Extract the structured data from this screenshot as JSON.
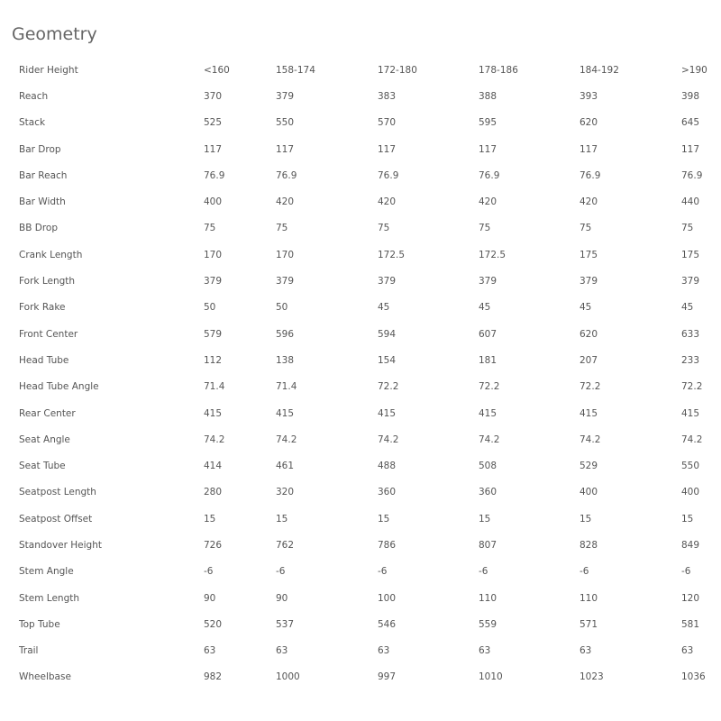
{
  "title": "Geometry",
  "rows": [
    [
      "Rider Height",
      "<160",
      "158-174",
      "172-180",
      "178-186",
      "184-192",
      ">190"
    ],
    [
      "Reach",
      "370",
      "379",
      "383",
      "388",
      "393",
      "398"
    ],
    [
      "Stack",
      "525",
      "550",
      "570",
      "595",
      "620",
      "645"
    ],
    [
      "Bar Drop",
      "117",
      "117",
      "117",
      "117",
      "117",
      "117"
    ],
    [
      "Bar Reach",
      "76.9",
      "76.9",
      "76.9",
      "76.9",
      "76.9",
      "76.9"
    ],
    [
      "Bar Width",
      "400",
      "420",
      "420",
      "420",
      "420",
      "440"
    ],
    [
      "BB Drop",
      "75",
      "75",
      "75",
      "75",
      "75",
      "75"
    ],
    [
      "Crank Length",
      "170",
      "170",
      "172.5",
      "172.5",
      "175",
      "175"
    ],
    [
      "Fork Length",
      "379",
      "379",
      "379",
      "379",
      "379",
      "379"
    ],
    [
      "Fork Rake",
      "50",
      "50",
      "45",
      "45",
      "45",
      "45"
    ],
    [
      "Front Center",
      "579",
      "596",
      "594",
      "607",
      "620",
      "633"
    ],
    [
      "Head Tube",
      "112",
      "138",
      "154",
      "181",
      "207",
      "233"
    ],
    [
      "Head Tube Angle",
      "71.4",
      "71.4",
      "72.2",
      "72.2",
      "72.2",
      "72.2"
    ],
    [
      "Rear Center",
      "415",
      "415",
      "415",
      "415",
      "415",
      "415"
    ],
    [
      "Seat Angle",
      "74.2",
      "74.2",
      "74.2",
      "74.2",
      "74.2",
      "74.2"
    ],
    [
      "Seat Tube",
      "414",
      "461",
      "488",
      "508",
      "529",
      "550"
    ],
    [
      "Seatpost Length",
      "280",
      "320",
      "360",
      "360",
      "400",
      "400"
    ],
    [
      "Seatpost Offset",
      "15",
      "15",
      "15",
      "15",
      "15",
      "15"
    ],
    [
      "Standover Height",
      "726",
      "762",
      "786",
      "807",
      "828",
      "849"
    ],
    [
      "Stem Angle",
      "-6",
      "-6",
      "-6",
      "-6",
      "-6",
      "-6"
    ],
    [
      "Stem Length",
      "90",
      "90",
      "100",
      "110",
      "110",
      "120"
    ],
    [
      "Top Tube",
      "520",
      "537",
      "546",
      "559",
      "571",
      "581"
    ],
    [
      "Trail",
      "63",
      "63",
      "63",
      "63",
      "63",
      "63"
    ],
    [
      "Wheelbase",
      "982",
      "1000",
      "997",
      "1010",
      "1023",
      "1036"
    ]
  ]
}
